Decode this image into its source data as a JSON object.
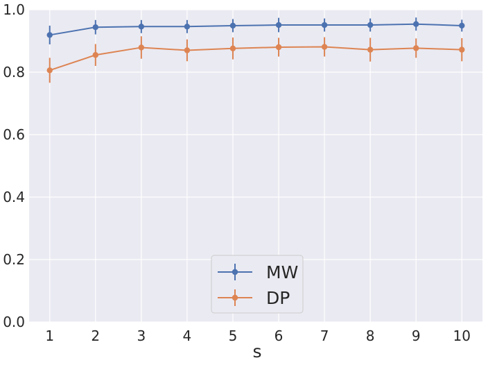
{
  "chart_data": {
    "type": "line",
    "title": "",
    "xlabel": "s",
    "ylabel": "",
    "x": [
      1,
      2,
      3,
      4,
      5,
      6,
      7,
      8,
      9,
      10
    ],
    "xticks": [
      "1",
      "2",
      "3",
      "4",
      "5",
      "6",
      "7",
      "8",
      "9",
      "10"
    ],
    "xlim": [
      0.55,
      10.45
    ],
    "ylim": [
      0.0,
      1.0
    ],
    "yticks": [
      "0.0",
      "0.2",
      "0.4",
      "0.6",
      "0.8",
      "1.0"
    ],
    "grid": true,
    "legend_position": "lower-center",
    "series": [
      {
        "name": "MW",
        "color": "#4c72b0",
        "values": [
          0.919,
          0.944,
          0.946,
          0.946,
          0.949,
          0.951,
          0.951,
          0.951,
          0.954,
          0.949
        ],
        "errors": [
          0.03,
          0.023,
          0.021,
          0.021,
          0.021,
          0.023,
          0.021,
          0.021,
          0.021,
          0.019
        ]
      },
      {
        "name": "DP",
        "color": "#dd8452",
        "values": [
          0.806,
          0.855,
          0.879,
          0.87,
          0.876,
          0.88,
          0.881,
          0.872,
          0.877,
          0.872
        ],
        "errors": [
          0.04,
          0.035,
          0.036,
          0.035,
          0.035,
          0.03,
          0.031,
          0.038,
          0.031,
          0.037
        ]
      }
    ]
  }
}
